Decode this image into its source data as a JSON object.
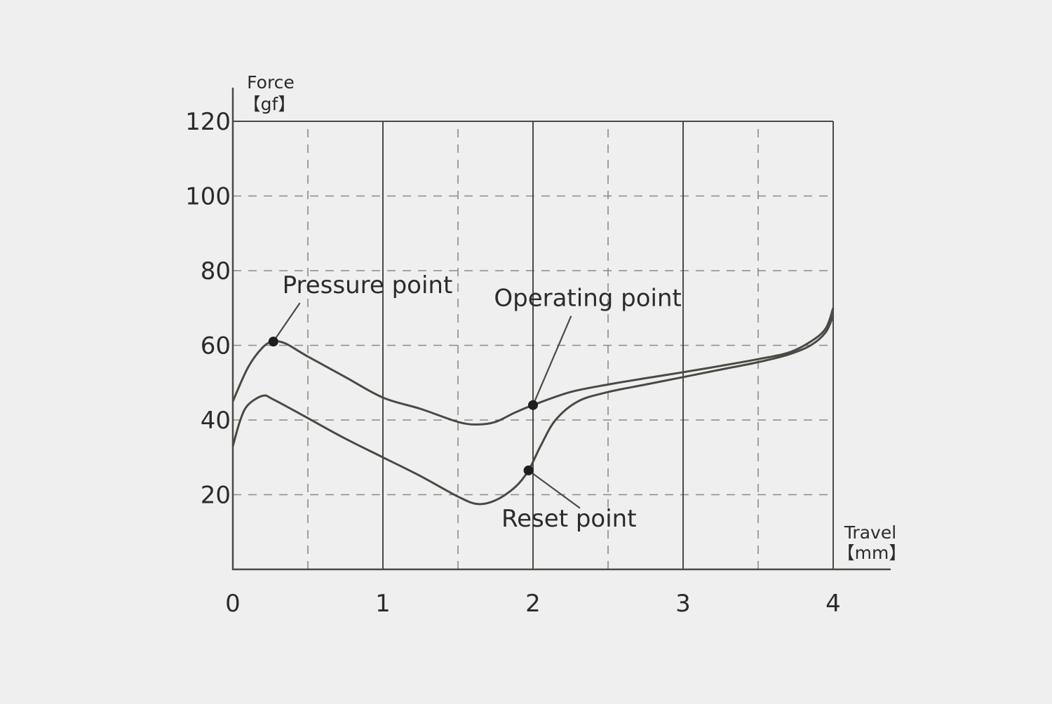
{
  "chart_data": {
    "type": "line",
    "title": "",
    "ylabel": "Force",
    "yunit": "【gf】",
    "xlabel": "Travel",
    "xunit": "【mm】",
    "xlim": [
      0,
      4
    ],
    "ylim": [
      0,
      120
    ],
    "x_ticks": [
      0,
      1,
      2,
      3,
      4
    ],
    "y_ticks": [
      20,
      40,
      60,
      80,
      100,
      120
    ],
    "y_tick_labels": [
      "20",
      "40",
      "60",
      "80",
      "100",
      "120"
    ],
    "x_tick_labels": [
      "0",
      "1",
      "2",
      "3",
      "4"
    ],
    "grid": true,
    "legend": "none",
    "line_color": "#4a4a44",
    "series": [
      {
        "x": [
          0,
          0.1,
          0.2,
          0.27,
          0.35,
          0.5,
          0.75,
          1.0,
          1.25,
          1.5,
          1.63,
          1.75,
          1.88,
          2.0,
          2.25,
          2.5,
          2.75,
          3.0,
          3.25,
          3.5,
          3.7,
          3.85,
          3.95,
          4.0
        ],
        "y": [
          45,
          54,
          59.5,
          61,
          60.5,
          57,
          51.5,
          46,
          43,
          39.5,
          38.8,
          39.5,
          42,
          44,
          47.5,
          49.5,
          51.2,
          52.8,
          54.5,
          56.3,
          58,
          61,
          64.5,
          70
        ]
      },
      {
        "x": [
          0,
          0.05,
          0.1,
          0.2,
          0.27,
          0.5,
          0.75,
          1.0,
          1.25,
          1.5,
          1.63,
          1.75,
          1.88,
          1.97,
          2.05,
          2.15,
          2.3,
          2.5,
          2.75,
          3.0,
          3.25,
          3.5,
          3.7,
          3.85,
          3.95,
          4.0
        ],
        "y": [
          33,
          40,
          44,
          46.5,
          45.5,
          40.5,
          35,
          30,
          25,
          19.5,
          17.5,
          18.5,
          22,
          26.5,
          33,
          40,
          45,
          47.5,
          49.5,
          51.5,
          53.5,
          55.5,
          57.5,
          60,
          63.5,
          68
        ]
      }
    ],
    "annotations": [
      {
        "label": "Pressure point",
        "point": [
          0.27,
          61
        ],
        "text_x": 0.33,
        "text_y": 74
      },
      {
        "label": "Operating point",
        "point": [
          2.0,
          44
        ],
        "text_x": 1.74,
        "text_y": 70.5
      },
      {
        "label": "Reset point",
        "point": [
          1.97,
          26.5
        ],
        "text_x": 1.79,
        "text_y": 11.5
      }
    ]
  }
}
